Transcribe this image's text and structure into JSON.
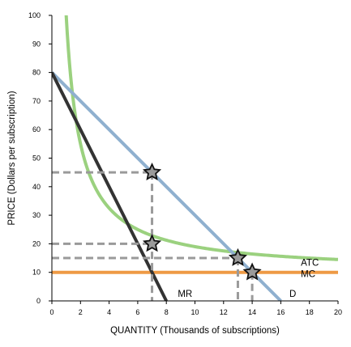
{
  "chart_data": {
    "type": "line",
    "xlabel": "QUANTITY (Thousands of subscriptions)",
    "ylabel": "PRICE (Dollars per subscription)",
    "xlim": [
      0,
      20
    ],
    "ylim": [
      0,
      100
    ],
    "xticks": [
      "0",
      "2",
      "4",
      "6",
      "8",
      "10",
      "12",
      "14",
      "16",
      "18",
      "20"
    ],
    "yticks": [
      "0",
      "10",
      "20",
      "30",
      "40",
      "50",
      "60",
      "70",
      "80",
      "90",
      "100"
    ],
    "grid": false,
    "colors": {
      "demand": "#8fb0cf",
      "mr": "#333333",
      "atc": "#9bd17f",
      "mc": "#ee9a45",
      "guide": "#9a9a9a",
      "marker": "#9a9a9a"
    },
    "series": [
      {
        "name": "D",
        "x": [
          0,
          16
        ],
        "y": [
          80,
          0
        ]
      },
      {
        "name": "MR",
        "x": [
          0,
          8
        ],
        "y": [
          80,
          0
        ]
      },
      {
        "name": "ATC",
        "fixed_cost": 90,
        "average_variable_cost": 10,
        "x_from": 0.75,
        "x_to": 20
      },
      {
        "name": "MC",
        "x": [
          0,
          20
        ],
        "y": [
          10,
          10
        ]
      }
    ],
    "points": [
      {
        "x": 7,
        "y": 45
      },
      {
        "x": 7,
        "y": 20
      },
      {
        "x": 13,
        "y": 15
      },
      {
        "x": 14,
        "y": 10
      }
    ],
    "guides": [
      {
        "x1": 0,
        "y1": 45,
        "x2": 7,
        "y2": 45
      },
      {
        "x1": 7,
        "y1": 45,
        "x2": 7,
        "y2": 0
      },
      {
        "x1": 0,
        "y1": 20,
        "x2": 7,
        "y2": 20
      },
      {
        "x1": 0,
        "y1": 15,
        "x2": 13,
        "y2": 15
      },
      {
        "x1": 13,
        "y1": 15,
        "x2": 13,
        "y2": 0
      },
      {
        "x1": 14,
        "y1": 10,
        "x2": 14,
        "y2": 0
      }
    ],
    "curve_labels": [
      {
        "text": "ATC",
        "x": 17.4,
        "y": 13.5
      },
      {
        "text": "MC",
        "x": 17.4,
        "y": 9.5
      },
      {
        "text": "MR",
        "x": 8.8,
        "y": 2.6
      },
      {
        "text": "D",
        "x": 16.6,
        "y": 2.6
      }
    ]
  }
}
